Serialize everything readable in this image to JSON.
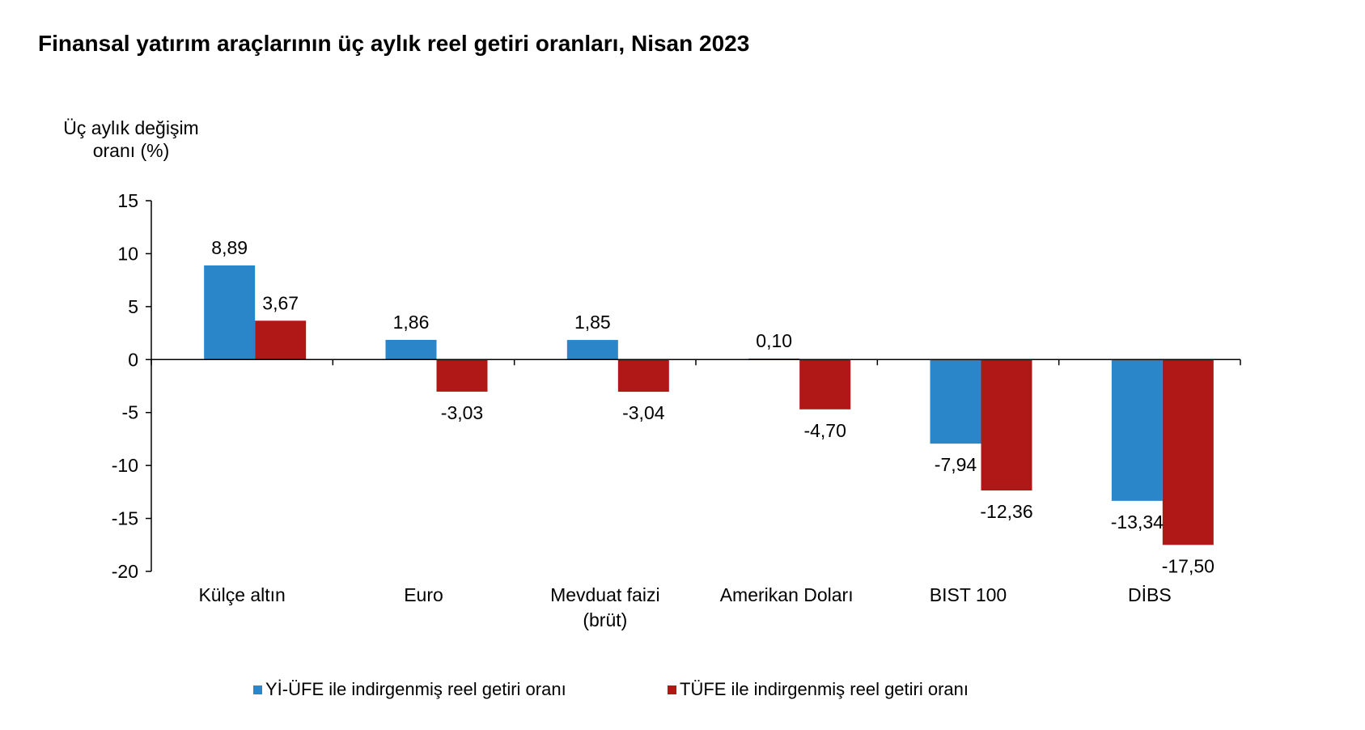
{
  "chart_data": {
    "type": "bar",
    "title": "Finansal yatırım araçlarının üç aylık reel getiri oranları, Nisan 2023",
    "ylabel": [
      "Üç aylık değişim",
      "oranı (%)"
    ],
    "xlabel": "",
    "categories": [
      [
        "Külçe altın"
      ],
      [
        "Euro"
      ],
      [
        "Mevduat faizi",
        "(brüt)"
      ],
      [
        "Amerikan Doları"
      ],
      [
        "BIST 100"
      ],
      [
        "DİBS"
      ]
    ],
    "series": [
      {
        "name": "Yİ-ÜFE ile indirgenmiş reel getiri oranı",
        "color": "#2a86c8",
        "values": [
          8.89,
          1.86,
          1.85,
          0.1,
          -7.94,
          -13.34
        ],
        "labels": [
          "8,89",
          "1,86",
          "1,85",
          "0,10",
          "-7,94",
          "-13,34"
        ]
      },
      {
        "name": "TÜFE ile indirgenmiş reel getiri oranı",
        "color": "#b01818",
        "values": [
          3.67,
          -3.03,
          -3.04,
          -4.7,
          -12.36,
          -17.5
        ],
        "labels": [
          "3,67",
          "-3,03",
          "-3,04",
          "-4,70",
          "-12,36",
          "-17,50"
        ]
      }
    ],
    "ylim": [
      -20,
      15
    ],
    "yticks": [
      15,
      10,
      5,
      0,
      -5,
      -10,
      -15,
      -20
    ],
    "grid": false,
    "legend_position": "bottom"
  }
}
